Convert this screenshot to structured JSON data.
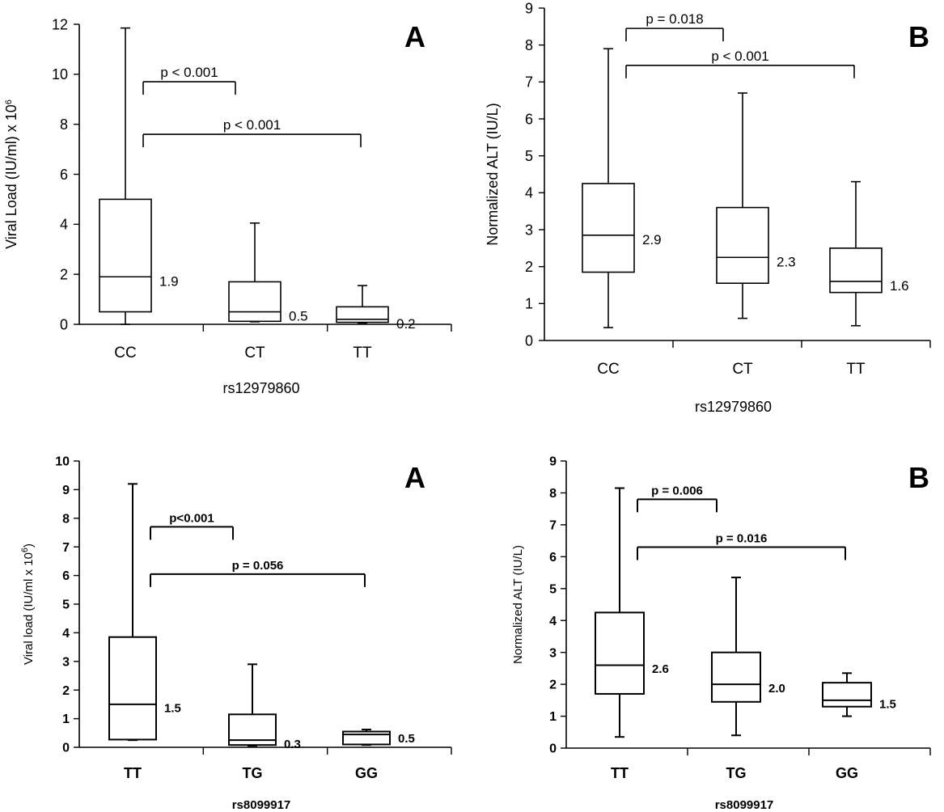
{
  "chart_data": [
    {
      "type": "boxplot",
      "panel_label": "A",
      "xlabel": "rs12979860",
      "ylabel": "Viral Load (IU/ml) x 10",
      "ylabel_superscript": "6",
      "ylim": [
        0,
        12
      ],
      "yticks": [
        0,
        2,
        4,
        6,
        8,
        10,
        12
      ],
      "categories": [
        "CC",
        "CT",
        "TT"
      ],
      "boxes": [
        {
          "category": "CC",
          "min": 0.0,
          "q1": 0.5,
          "median": 1.9,
          "q3": 5.0,
          "max": 11.85,
          "label": "1.9"
        },
        {
          "category": "CT",
          "min": 0.1,
          "q1": 0.12,
          "median": 0.5,
          "q3": 1.7,
          "max": 4.05,
          "label": "0.5"
        },
        {
          "category": "TT",
          "min": 0.05,
          "q1": 0.08,
          "median": 0.2,
          "q3": 0.7,
          "max": 1.55,
          "label": "0.2"
        }
      ],
      "comparisons": [
        {
          "from": "CC",
          "to": "CT",
          "y": 9.7,
          "label": "p < 0.001"
        },
        {
          "from": "CC",
          "to": "TT",
          "y": 7.6,
          "label": "p < 0.001"
        }
      ]
    },
    {
      "type": "boxplot",
      "panel_label": "B",
      "xlabel": "rs12979860",
      "ylabel": "Normalized ALT  (IU/L)",
      "ylim": [
        0,
        9
      ],
      "yticks": [
        0,
        1,
        2,
        3,
        4,
        5,
        6,
        7,
        8,
        9
      ],
      "categories": [
        "CC",
        "CT",
        "TT"
      ],
      "boxes": [
        {
          "category": "CC",
          "min": 0.35,
          "q1": 1.85,
          "median": 2.85,
          "q3": 4.25,
          "max": 7.9,
          "label": "2.9"
        },
        {
          "category": "CT",
          "min": 0.6,
          "q1": 1.55,
          "median": 2.25,
          "q3": 3.6,
          "max": 6.7,
          "label": "2.3"
        },
        {
          "category": "TT",
          "min": 0.4,
          "q1": 1.3,
          "median": 1.6,
          "q3": 2.5,
          "max": 4.3,
          "label": "1.6"
        }
      ],
      "comparisons": [
        {
          "from": "CC",
          "to": "CT",
          "y": 8.45,
          "label": "p = 0.018"
        },
        {
          "from": "CC",
          "to": "TT",
          "y": 7.45,
          "label": "p < 0.001"
        }
      ]
    },
    {
      "type": "boxplot",
      "panel_label": "A",
      "xlabel": "rs8099917",
      "ylabel": "Viral load (IU/ml x 10",
      "ylabel_superscript": "6",
      "ylabel_suffix": ")",
      "ylim": [
        0,
        10
      ],
      "yticks": [
        0,
        1,
        2,
        3,
        4,
        5,
        6,
        7,
        8,
        9,
        10
      ],
      "categories": [
        "TT",
        "TG",
        "GG"
      ],
      "boxes": [
        {
          "category": "TT",
          "min": 0.25,
          "q1": 0.27,
          "median": 1.5,
          "q3": 3.85,
          "max": 9.2,
          "label": "1.5"
        },
        {
          "category": "TG",
          "min": 0.05,
          "q1": 0.08,
          "median": 0.25,
          "q3": 1.15,
          "max": 2.9,
          "label": "0.3"
        },
        {
          "category": "GG",
          "min": 0.08,
          "q1": 0.1,
          "median": 0.45,
          "q3": 0.55,
          "max": 0.62,
          "label": "0.5"
        }
      ],
      "comparisons": [
        {
          "from": "TT",
          "to": "TG",
          "y": 7.7,
          "label": "p<0.001"
        },
        {
          "from": "TT",
          "to": "GG",
          "y": 6.05,
          "label": "p = 0.056"
        }
      ]
    },
    {
      "type": "boxplot",
      "panel_label": "B",
      "xlabel": "rs8099917",
      "ylabel": "Normalized ALT (IU/L)",
      "ylim": [
        0,
        9
      ],
      "yticks": [
        0,
        1,
        2,
        3,
        4,
        5,
        6,
        7,
        8,
        9
      ],
      "categories": [
        "TT",
        "TG",
        "GG"
      ],
      "boxes": [
        {
          "category": "TT",
          "min": 0.35,
          "q1": 1.7,
          "median": 2.6,
          "q3": 4.25,
          "max": 8.15,
          "label": "2.6"
        },
        {
          "category": "TG",
          "min": 0.4,
          "q1": 1.45,
          "median": 2.0,
          "q3": 3.0,
          "max": 5.35,
          "label": "2.0"
        },
        {
          "category": "GG",
          "min": 1.0,
          "q1": 1.3,
          "median": 1.5,
          "q3": 2.05,
          "max": 2.35,
          "label": "1.5"
        }
      ],
      "comparisons": [
        {
          "from": "TT",
          "to": "TG",
          "y": 7.8,
          "label": "p = 0.006"
        },
        {
          "from": "TT",
          "to": "GG",
          "y": 6.3,
          "label": "p = 0.016"
        }
      ]
    }
  ]
}
